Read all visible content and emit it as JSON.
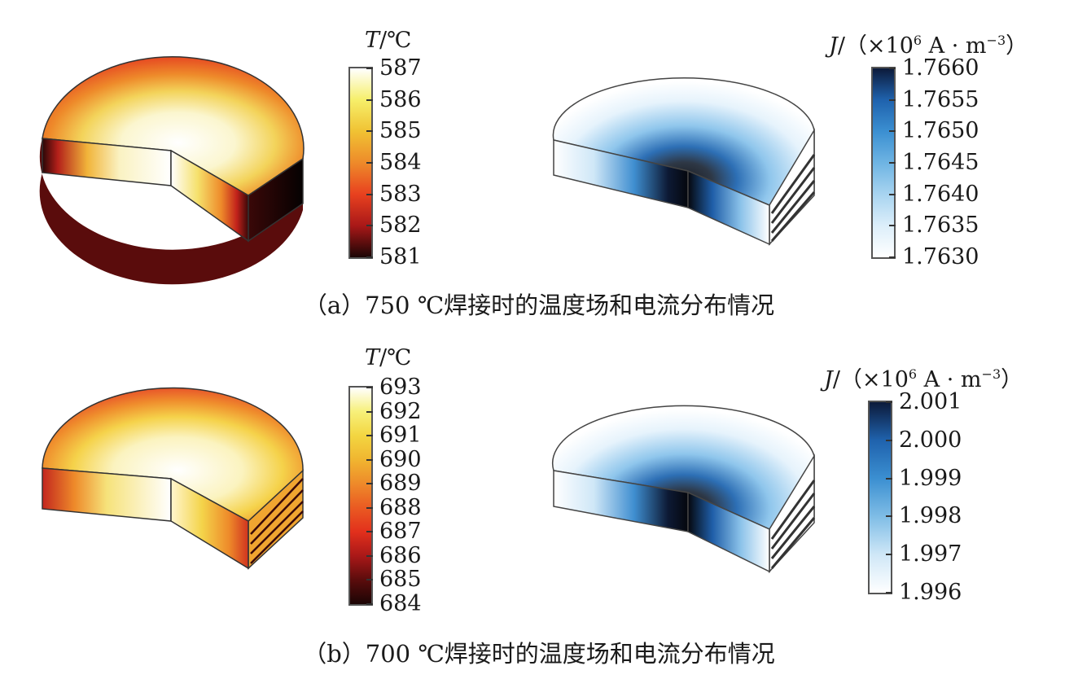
{
  "panels": [
    {
      "id": "a",
      "caption": "（a）750 ℃焊接时的温度场和电流分布情况",
      "temperature": {
        "unit_symbol": "T",
        "unit_rest": "/℃",
        "ticks": [
          "587",
          "586",
          "585",
          "584",
          "583",
          "582",
          "581"
        ],
        "colors": [
          "#ffffff",
          "#f6ef6a",
          "#f0c233",
          "#ee8a2a",
          "#e8411f",
          "#a91818",
          "#1b0505"
        ]
      },
      "current": {
        "unit_symbol": "J",
        "unit_prefix": "/（×10",
        "unit_exp": "6",
        "unit_mid": " A · m",
        "unit_exp2": "−3",
        "unit_close": "）",
        "ticks": [
          "1.7660",
          "1.7655",
          "1.7650",
          "1.7645",
          "1.7640",
          "1.7635",
          "1.7630"
        ],
        "colors": [
          "#0c1a3a",
          "#1f62ad",
          "#3b8fd1",
          "#6eb4e3",
          "#a8d4f0",
          "#dceefa",
          "#ffffff"
        ]
      }
    },
    {
      "id": "b",
      "caption": "（b）700 ℃焊接时的温度场和电流分布情况",
      "temperature": {
        "unit_symbol": "T",
        "unit_rest": "/℃",
        "ticks": [
          "693",
          "692",
          "691",
          "690",
          "689",
          "688",
          "687",
          "686",
          "685",
          "684"
        ],
        "colors": [
          "#ffffff",
          "#f7f07a",
          "#f3d641",
          "#f0b530",
          "#ee8a2a",
          "#ea5a22",
          "#e2301c",
          "#a91818",
          "#5a0c0c",
          "#1b0505"
        ]
      },
      "current": {
        "unit_symbol": "J",
        "unit_prefix": "/（×10",
        "unit_exp": "6",
        "unit_mid": " A · m",
        "unit_exp2": "−3",
        "unit_close": "）",
        "ticks": [
          "2.001",
          "2.000",
          "1.999",
          "1.998",
          "1.997",
          "1.996"
        ],
        "colors": [
          "#0c1a3a",
          "#1f62ad",
          "#3b8fd1",
          "#7fbde6",
          "#cfe7f7",
          "#ffffff"
        ]
      }
    }
  ]
}
